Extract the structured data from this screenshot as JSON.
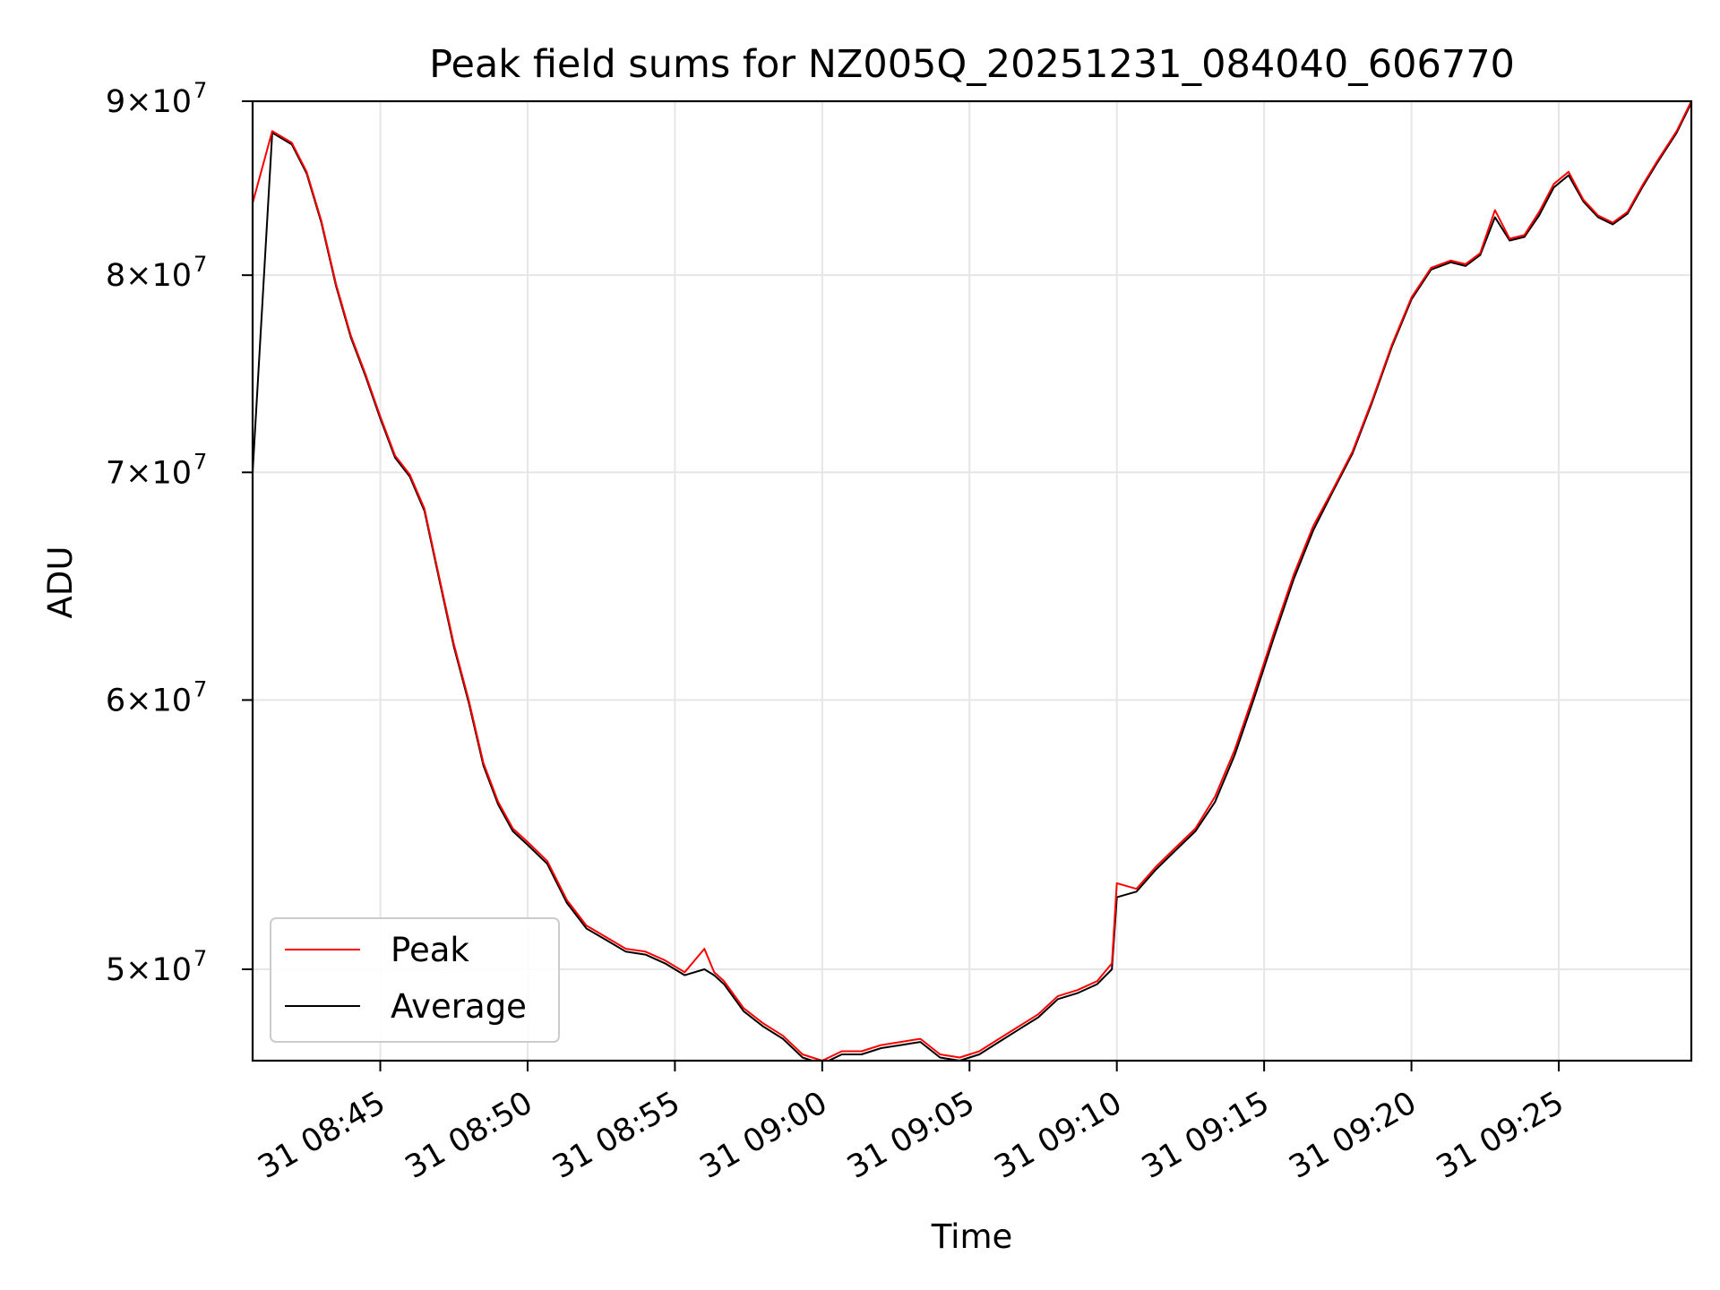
{
  "chart_data": {
    "type": "line",
    "title": "Peak field sums for NZ005Q_20251231_084040_606770",
    "xlabel": "Time",
    "ylabel": "ADU",
    "xlim": [
      "2025-12-31T08:40:40",
      "2025-12-31T09:29:30"
    ],
    "ylim": [
      47000000,
      90000000
    ],
    "yscale": "log",
    "grid": true,
    "legend": "lower-left",
    "x_ticks": [
      {
        "value": "2025-12-31T08:45:00",
        "label": "31 08:45"
      },
      {
        "value": "2025-12-31T08:50:00",
        "label": "31 08:50"
      },
      {
        "value": "2025-12-31T08:55:00",
        "label": "31 08:55"
      },
      {
        "value": "2025-12-31T09:00:00",
        "label": "31 09:00"
      },
      {
        "value": "2025-12-31T09:05:00",
        "label": "31 09:05"
      },
      {
        "value": "2025-12-31T09:10:00",
        "label": "31 09:10"
      },
      {
        "value": "2025-12-31T09:15:00",
        "label": "31 09:15"
      },
      {
        "value": "2025-12-31T09:20:00",
        "label": "31 09:20"
      },
      {
        "value": "2025-12-31T09:25:00",
        "label": "31 09:25"
      }
    ],
    "y_ticks": [
      {
        "value": 50000000,
        "mantissa": "5",
        "exponent": "7"
      },
      {
        "value": 60000000,
        "mantissa": "6",
        "exponent": "7"
      },
      {
        "value": 70000000,
        "mantissa": "7",
        "exponent": "7"
      },
      {
        "value": 80000000,
        "mantissa": "8",
        "exponent": "7"
      },
      {
        "value": 90000000,
        "mantissa": "9",
        "exponent": "7"
      }
    ],
    "x": [
      "2025-12-31T08:40:40",
      "2025-12-31T08:41:20",
      "2025-12-31T08:42:00",
      "2025-12-31T08:42:30",
      "2025-12-31T08:43:00",
      "2025-12-31T08:43:30",
      "2025-12-31T08:44:00",
      "2025-12-31T08:44:30",
      "2025-12-31T08:45:00",
      "2025-12-31T08:45:30",
      "2025-12-31T08:46:00",
      "2025-12-31T08:46:30",
      "2025-12-31T08:47:00",
      "2025-12-31T08:47:30",
      "2025-12-31T08:48:00",
      "2025-12-31T08:48:30",
      "2025-12-31T08:49:00",
      "2025-12-31T08:49:30",
      "2025-12-31T08:50:00",
      "2025-12-31T08:50:40",
      "2025-12-31T08:51:20",
      "2025-12-31T08:52:00",
      "2025-12-31T08:52:40",
      "2025-12-31T08:53:20",
      "2025-12-31T08:54:00",
      "2025-12-31T08:54:40",
      "2025-12-31T08:55:20",
      "2025-12-31T08:56:00",
      "2025-12-31T08:56:20",
      "2025-12-31T08:56:40",
      "2025-12-31T08:57:20",
      "2025-12-31T08:58:00",
      "2025-12-31T08:58:40",
      "2025-12-31T08:59:20",
      "2025-12-31T09:00:00",
      "2025-12-31T09:00:40",
      "2025-12-31T09:01:20",
      "2025-12-31T09:02:00",
      "2025-12-31T09:02:40",
      "2025-12-31T09:03:20",
      "2025-12-31T09:04:00",
      "2025-12-31T09:04:40",
      "2025-12-31T09:05:20",
      "2025-12-31T09:06:00",
      "2025-12-31T09:06:40",
      "2025-12-31T09:07:20",
      "2025-12-31T09:08:00",
      "2025-12-31T09:08:40",
      "2025-12-31T09:09:20",
      "2025-12-31T09:09:50",
      "2025-12-31T09:10:00",
      "2025-12-31T09:10:40",
      "2025-12-31T09:11:20",
      "2025-12-31T09:12:00",
      "2025-12-31T09:12:40",
      "2025-12-31T09:13:20",
      "2025-12-31T09:14:00",
      "2025-12-31T09:14:40",
      "2025-12-31T09:15:20",
      "2025-12-31T09:16:00",
      "2025-12-31T09:16:40",
      "2025-12-31T09:17:20",
      "2025-12-31T09:18:00",
      "2025-12-31T09:18:40",
      "2025-12-31T09:19:20",
      "2025-12-31T09:20:00",
      "2025-12-31T09:20:40",
      "2025-12-31T09:21:20",
      "2025-12-31T09:21:50",
      "2025-12-31T09:22:20",
      "2025-12-31T09:22:50",
      "2025-12-31T09:23:20",
      "2025-12-31T09:23:50",
      "2025-12-31T09:24:20",
      "2025-12-31T09:24:50",
      "2025-12-31T09:25:20",
      "2025-12-31T09:25:50",
      "2025-12-31T09:26:20",
      "2025-12-31T09:26:50",
      "2025-12-31T09:27:20",
      "2025-12-31T09:27:50",
      "2025-12-31T09:28:20",
      "2025-12-31T09:29:00",
      "2025-12-31T09:29:30"
    ],
    "series": [
      {
        "name": "Peak",
        "color": "#ff0000",
        "values": [
          84000000,
          88200000,
          87500000,
          85800000,
          83000000,
          79500000,
          76800000,
          74800000,
          72700000,
          70800000,
          69900000,
          68300000,
          65200000,
          62300000,
          60000000,
          57500000,
          56000000,
          55000000,
          54500000,
          53800000,
          52400000,
          51500000,
          51100000,
          50700000,
          50600000,
          50300000,
          49900000,
          50700000,
          49900000,
          49600000,
          48700000,
          48200000,
          47800000,
          47200000,
          47000000,
          47300000,
          47300000,
          47500000,
          47600000,
          47700000,
          47200000,
          47100000,
          47300000,
          47700000,
          48100000,
          48500000,
          49100000,
          49300000,
          49600000,
          50200000,
          53000000,
          52800000,
          53600000,
          54300000,
          55000000,
          56200000,
          58000000,
          60300000,
          62800000,
          65300000,
          67500000,
          69200000,
          71000000,
          73500000,
          76300000,
          78800000,
          80400000,
          80800000,
          80600000,
          81200000,
          83600000,
          82000000,
          82200000,
          83500000,
          85100000,
          85800000,
          84200000,
          83300000,
          82900000,
          83500000,
          85000000,
          86400000,
          88200000,
          90000000
        ]
      },
      {
        "name": "Average",
        "color": "#000000",
        "values": [
          70000000,
          88100000,
          87400000,
          85700000,
          82900000,
          79400000,
          76700000,
          74700000,
          72600000,
          70700000,
          69800000,
          68200000,
          65100000,
          62200000,
          59900000,
          57400000,
          55900000,
          54900000,
          54400000,
          53700000,
          52300000,
          51400000,
          51000000,
          50600000,
          50500000,
          50200000,
          49800000,
          50000000,
          49800000,
          49500000,
          48600000,
          48100000,
          47700000,
          47100000,
          46900000,
          47200000,
          47200000,
          47400000,
          47500000,
          47600000,
          47100000,
          47000000,
          47200000,
          47600000,
          48000000,
          48400000,
          49000000,
          49200000,
          49500000,
          50000000,
          52500000,
          52700000,
          53500000,
          54200000,
          54900000,
          56000000,
          57800000,
          60100000,
          62600000,
          65100000,
          67300000,
          69100000,
          70900000,
          73400000,
          76200000,
          78700000,
          80300000,
          80700000,
          80500000,
          81100000,
          83200000,
          81900000,
          82100000,
          83300000,
          84900000,
          85600000,
          84100000,
          83200000,
          82800000,
          83400000,
          84900000,
          86300000,
          88100000,
          89900000
        ]
      }
    ]
  }
}
